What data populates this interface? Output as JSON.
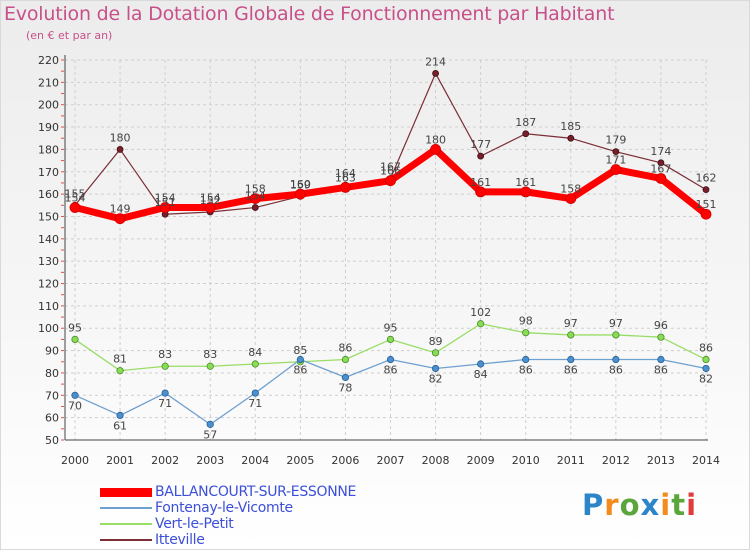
{
  "header": {
    "title": "Evolution de la Dotation Globale de Fonctionnement par Habitant",
    "subtitle": "(en € et par an)"
  },
  "chart_data": {
    "type": "line",
    "title": "Evolution de la Dotation Globale de Fonctionnement par Habitant",
    "subtitle": "(en € et par an)",
    "xlabel": "",
    "ylabel": "",
    "categories": [
      "2000",
      "2001",
      "2002",
      "2003",
      "2004",
      "2005",
      "2006",
      "2007",
      "2008",
      "2009",
      "2010",
      "2011",
      "2012",
      "2013",
      "2014"
    ],
    "ylim": [
      50,
      220
    ],
    "yticks": [
      50,
      60,
      70,
      80,
      90,
      100,
      110,
      120,
      130,
      140,
      150,
      160,
      170,
      180,
      190,
      200,
      210,
      220
    ],
    "grid": true,
    "legend_position": "bottom-left",
    "series": [
      {
        "name": "BALLANCOURT-SUR-ESSONNE",
        "color": "#ff0000",
        "values": [
          154,
          149,
          154,
          154,
          158,
          160,
          163,
          166,
          180,
          161,
          161,
          158,
          171,
          167,
          151
        ]
      },
      {
        "name": "Fontenay-le-Vicomte",
        "color": "#6ea0d0",
        "values": [
          70,
          61,
          71,
          57,
          71,
          86,
          78,
          86,
          82,
          84,
          86,
          86,
          86,
          86,
          82
        ]
      },
      {
        "name": "Vert-le-Petit",
        "color": "#99dd66",
        "values": [
          95,
          81,
          83,
          83,
          84,
          85,
          86,
          95,
          89,
          102,
          98,
          97,
          97,
          96,
          86
        ]
      },
      {
        "name": "Itteville",
        "color": "#7a2e36",
        "values": [
          155,
          180,
          151,
          152,
          154,
          159,
          164,
          167,
          214,
          177,
          187,
          185,
          179,
          174,
          162
        ]
      }
    ]
  },
  "logo": {
    "letters": [
      "P",
      "r",
      "o",
      "x",
      "i",
      "t",
      "i"
    ],
    "colors": [
      "#2c85c9",
      "#f28c1c",
      "#5aa63c",
      "#2c85c9",
      "#f28c1c",
      "#5aa63c",
      "#e03c3c"
    ]
  }
}
